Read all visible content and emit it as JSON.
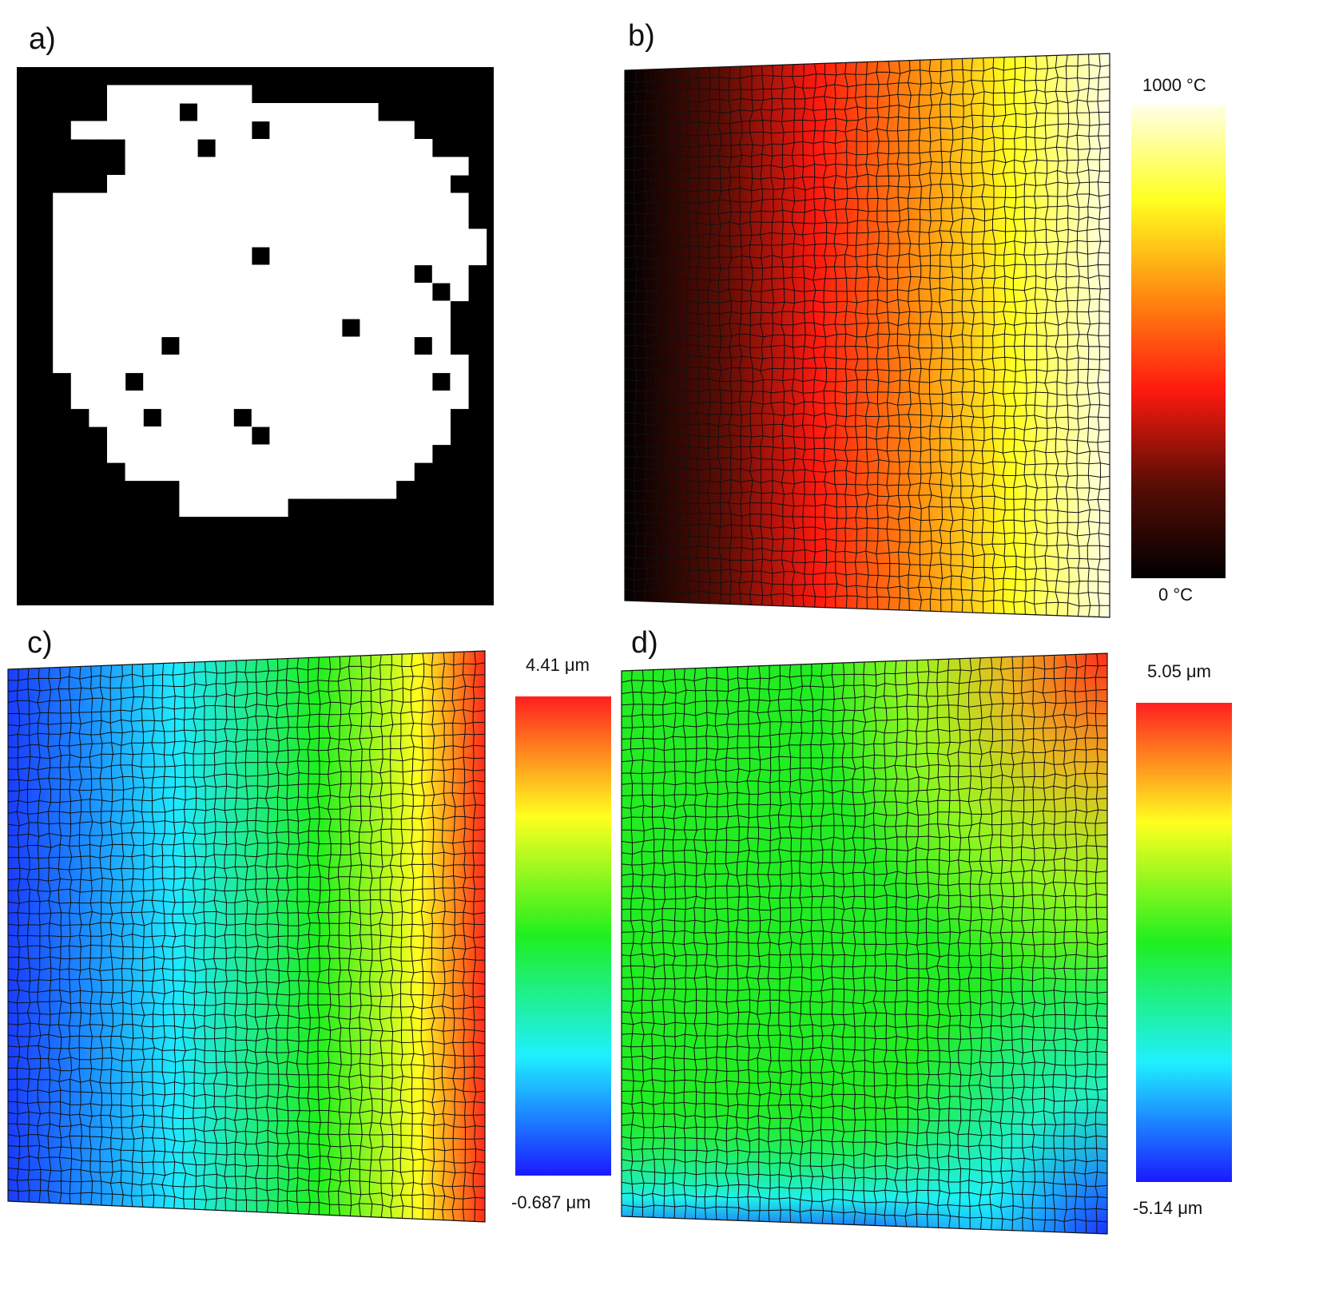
{
  "panels": {
    "a": {
      "label": "a)"
    },
    "b": {
      "label": "b)",
      "colorbar": {
        "max": "1000 °C",
        "min": "0 °C"
      }
    },
    "c": {
      "label": "c)",
      "colorbar": {
        "max": "4.41 μm",
        "min": "-0.687 μm"
      }
    },
    "d": {
      "label": "d)",
      "colorbar": {
        "max": "5.05 μm",
        "min": "-5.14 μm"
      }
    }
  },
  "colormaps": {
    "heat": [
      "#000000",
      "#5a0d05",
      "#ff1a10",
      "#ff8c10",
      "#ffff20",
      "#ffffe6"
    ],
    "jet": [
      "#1a1aff",
      "#1ff0ff",
      "#1fef1f",
      "#ffff1f",
      "#ff1f1f"
    ]
  },
  "mask": {
    "rows": [
      "00000000000000000000000000",
      "00000111111110000000000000",
      "00000111111111111111000000",
      "00011111111111111111110000",
      "00000011111111111111111000",
      "00000011111111111111111110",
      "00001111111111111111111100",
      "00111111111111111111111110",
      "00111111111111111111111110",
      "00111111111111111111111111",
      "00111111111111111111111111",
      "00111111111111111111111110",
      "00111111111111111111111110",
      "00111111111111111111111100",
      "00111111111111111111111100",
      "00111111111111111111111100",
      "00111111111111111111111110",
      "00011111111111111111111110",
      "00011111111111111111111110",
      "00001111111111111111111100",
      "00000111111111111111111100",
      "00000111111111111111111000",
      "00000011111111111111110000",
      "00000000011111111111100000",
      "00000000011111100000000000",
      "00000000000000000000000000",
      "00000000000000000000000000",
      "00000000000000000000000000",
      "00000000000000000000000000",
      "00000000000000000000000000"
    ],
    "holes": [
      [
        2,
        9
      ],
      [
        3,
        13
      ],
      [
        4,
        10
      ],
      [
        6,
        4
      ],
      [
        6,
        3
      ],
      [
        10,
        13
      ],
      [
        14,
        18
      ],
      [
        15,
        8
      ],
      [
        15,
        22
      ],
      [
        17,
        6
      ],
      [
        17,
        23
      ],
      [
        19,
        7
      ],
      [
        19,
        12
      ],
      [
        20,
        13
      ],
      [
        11,
        22
      ],
      [
        12,
        23
      ]
    ]
  }
}
